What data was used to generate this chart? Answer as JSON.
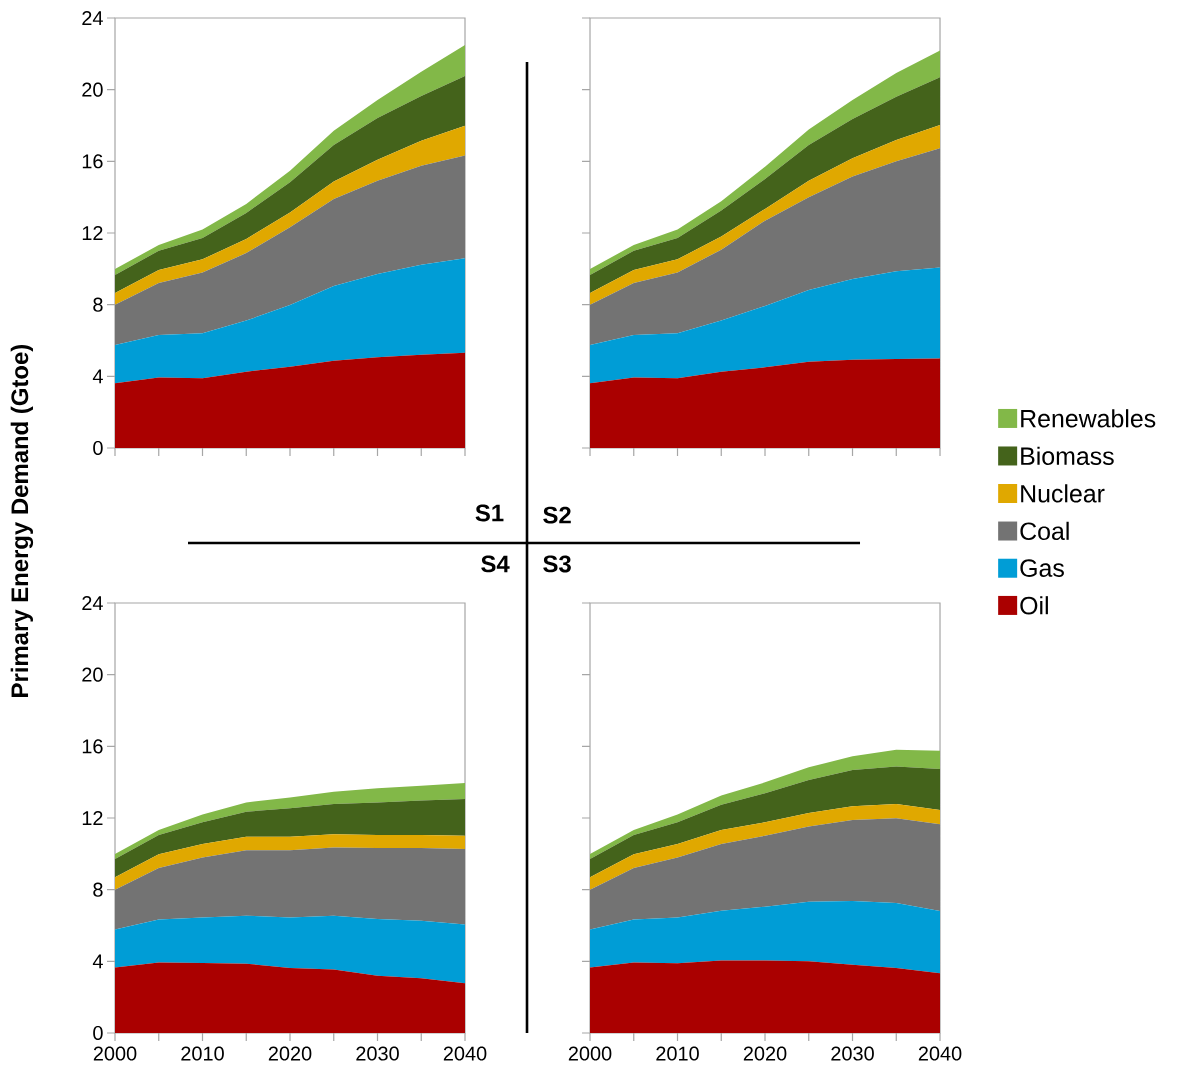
{
  "chart_data": [
    {
      "type": "area",
      "title": "S1",
      "ylabel": "Primary Energy Demand (Gtoe)",
      "stacked": true,
      "tick_labels": "y",
      "x": [
        2000,
        2005,
        2010,
        2015,
        2020,
        2025,
        2030,
        2035,
        2040
      ],
      "xlim": [
        2000,
        2040
      ],
      "xticks": [
        2000,
        {
          "value": 2005,
          "label": null
        },
        2010,
        {
          "value": 2015,
          "label": null
        },
        2020,
        {
          "value": 2025,
          "label": null
        },
        2030,
        {
          "value": 2035,
          "label": null
        },
        2040
      ],
      "ylim": [
        0,
        24
      ],
      "yticks": [
        0,
        4,
        8,
        12,
        16,
        20,
        24
      ],
      "series": [
        {
          "color": "#aa0000",
          "values": [
            3.61,
            3.94,
            3.89,
            4.26,
            4.54,
            4.87,
            5.06,
            5.21,
            5.32
          ]
        },
        {
          "color": "#009dd6",
          "values": [
            2.14,
            2.37,
            2.51,
            2.85,
            3.44,
            4.17,
            4.65,
            5.02,
            5.27
          ]
        },
        {
          "color": "#737373",
          "values": [
            2.25,
            2.9,
            3.39,
            3.77,
            4.34,
            4.86,
            5.21,
            5.53,
            5.73
          ]
        },
        {
          "color": "#e0a800",
          "values": [
            0.65,
            0.72,
            0.74,
            0.79,
            0.83,
            0.97,
            1.17,
            1.39,
            1.67
          ]
        },
        {
          "color": "#44631b",
          "values": [
            1.01,
            1.08,
            1.19,
            1.45,
            1.68,
            2.04,
            2.33,
            2.5,
            2.77
          ]
        },
        {
          "color": "#82b848",
          "values": [
            0.33,
            0.32,
            0.47,
            0.5,
            0.65,
            0.8,
            1.0,
            1.35,
            1.73
          ]
        }
      ]
    },
    {
      "type": "area",
      "title": "S2",
      "stacked": true,
      "tick_labels": false,
      "legend": "right",
      "x": [
        2000,
        2005,
        2010,
        2015,
        2020,
        2025,
        2030,
        2035,
        2040
      ],
      "xlim": [
        2000,
        2040
      ],
      "xticks": [
        2000,
        {
          "value": 2005,
          "label": null
        },
        2010,
        {
          "value": 2015,
          "label": null
        },
        2020,
        {
          "value": 2025,
          "label": null
        },
        2030,
        {
          "value": 2035,
          "label": null
        },
        2040
      ],
      "ylim": [
        0,
        24
      ],
      "yticks": [
        0,
        4,
        8,
        12,
        16,
        20,
        24
      ],
      "series": [
        {
          "name": "Oil",
          "color": "#aa0000",
          "values": [
            3.61,
            3.94,
            3.89,
            4.26,
            4.5,
            4.82,
            4.93,
            4.97,
            4.99
          ]
        },
        {
          "name": "Gas",
          "color": "#009dd6",
          "values": [
            2.14,
            2.37,
            2.51,
            2.85,
            3.43,
            4.0,
            4.5,
            4.89,
            5.09
          ]
        },
        {
          "name": "Coal",
          "color": "#737373",
          "values": [
            2.25,
            2.9,
            3.39,
            3.96,
            4.76,
            5.17,
            5.73,
            6.14,
            6.65
          ]
        },
        {
          "name": "Nuclear",
          "color": "#e0a800",
          "values": [
            0.65,
            0.72,
            0.74,
            0.74,
            0.65,
            0.93,
            1.01,
            1.19,
            1.3
          ]
        },
        {
          "name": "Biomass",
          "color": "#44631b",
          "values": [
            1.01,
            1.08,
            1.19,
            1.44,
            1.67,
            1.99,
            2.19,
            2.42,
            2.66
          ]
        },
        {
          "name": "Renewables",
          "color": "#82b848",
          "values": [
            0.33,
            0.32,
            0.47,
            0.52,
            0.69,
            0.86,
            1.06,
            1.32,
            1.49
          ]
        }
      ]
    },
    {
      "type": "area",
      "title": "S4",
      "stacked": true,
      "x": [
        2000,
        2005,
        2010,
        2015,
        2020,
        2025,
        2030,
        2035,
        2040
      ],
      "xlim": [
        2000,
        2040
      ],
      "xticks": [
        2000,
        {
          "value": 2005,
          "label": null
        },
        2010,
        {
          "value": 2015,
          "label": null
        },
        2020,
        {
          "value": 2025,
          "label": null
        },
        2030,
        {
          "value": 2035,
          "label": null
        },
        2040
      ],
      "ylim": [
        0,
        24
      ],
      "yticks": [
        0,
        4,
        8,
        12,
        16,
        20,
        24
      ],
      "series": [
        {
          "color": "#aa0000",
          "values": [
            3.65,
            3.94,
            3.91,
            3.87,
            3.63,
            3.55,
            3.2,
            3.05,
            2.77
          ]
        },
        {
          "color": "#009dd6",
          "values": [
            2.12,
            2.4,
            2.53,
            2.68,
            2.81,
            3.0,
            3.16,
            3.22,
            3.28
          ]
        },
        {
          "color": "#737373",
          "values": [
            2.23,
            2.87,
            3.36,
            3.65,
            3.76,
            3.81,
            3.97,
            4.06,
            4.22
          ]
        },
        {
          "color": "#e0a800",
          "values": [
            0.69,
            0.76,
            0.75,
            0.76,
            0.76,
            0.73,
            0.72,
            0.72,
            0.74
          ]
        },
        {
          "color": "#44631b",
          "values": [
            1.02,
            1.08,
            1.21,
            1.39,
            1.58,
            1.69,
            1.82,
            1.92,
            2.05
          ]
        },
        {
          "color": "#82b848",
          "values": [
            0.28,
            0.28,
            0.43,
            0.52,
            0.61,
            0.69,
            0.79,
            0.83,
            0.89
          ]
        }
      ]
    },
    {
      "type": "area",
      "title": "S3",
      "stacked": true,
      "tick_labels": "x",
      "x": [
        2000,
        2005,
        2010,
        2015,
        2020,
        2025,
        2030,
        2035,
        2040
      ],
      "xlim": [
        2000,
        2040
      ],
      "xticks": [
        2000,
        {
          "value": 2005,
          "label": null
        },
        2010,
        {
          "value": 2015,
          "label": null
        },
        2020,
        {
          "value": 2025,
          "label": null
        },
        2030,
        {
          "value": 2035,
          "label": null
        },
        2040
      ],
      "ylim": [
        0,
        24
      ],
      "yticks": [
        0,
        4,
        8,
        12,
        16,
        20,
        24
      ],
      "series": [
        {
          "color": "#aa0000",
          "values": [
            3.65,
            3.94,
            3.89,
            4.04,
            4.04,
            4.0,
            3.81,
            3.63,
            3.33
          ]
        },
        {
          "color": "#009dd6",
          "values": [
            2.12,
            2.4,
            2.55,
            2.79,
            3.01,
            3.33,
            3.56,
            3.63,
            3.48
          ]
        },
        {
          "color": "#737373",
          "values": [
            2.23,
            2.87,
            3.36,
            3.72,
            3.96,
            4.19,
            4.52,
            4.72,
            4.84
          ]
        },
        {
          "color": "#e0a800",
          "values": [
            0.69,
            0.76,
            0.75,
            0.78,
            0.75,
            0.76,
            0.76,
            0.8,
            0.8
          ]
        },
        {
          "color": "#44631b",
          "values": [
            1.02,
            1.08,
            1.21,
            1.41,
            1.62,
            1.84,
            2.03,
            2.1,
            2.28
          ]
        },
        {
          "color": "#82b848",
          "values": [
            0.28,
            0.28,
            0.43,
            0.51,
            0.61,
            0.71,
            0.76,
            0.93,
            1.03
          ]
        }
      ]
    }
  ]
}
